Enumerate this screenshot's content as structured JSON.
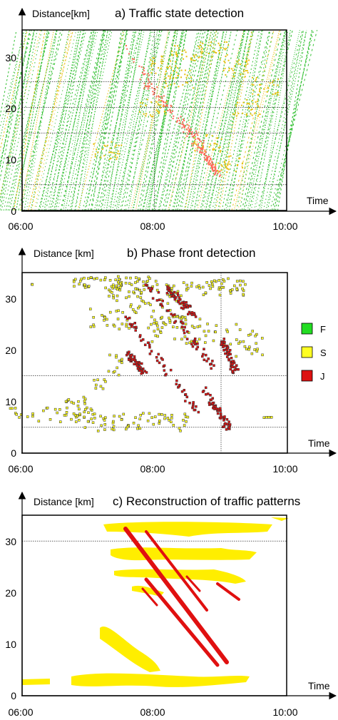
{
  "chart_data": [
    {
      "type": "scatter",
      "title": "a) Traffic state detection",
      "ylabel": "Distance[km]",
      "xlabel": "Time",
      "x_ticks": [
        "06:00",
        "08:00",
        "10:00"
      ],
      "y_ticks": [
        "0",
        "10",
        "20",
        "30"
      ],
      "xlim": [
        "06:00",
        "10:00"
      ],
      "ylim": [
        0,
        35
      ],
      "grid": {
        "horizontal_km": [
          5,
          15,
          20,
          25
        ],
        "vertical_time": [
          "08:00"
        ]
      },
      "colors": {
        "free": "#22bb22",
        "synchronized": "#e8c010",
        "jam": "#ff6a5a"
      },
      "series": []
    },
    {
      "type": "scatter",
      "title": "b) Phase front detection",
      "ylabel": "Distance [km]",
      "xlabel": "Time",
      "x_ticks": [
        "06:00",
        "08:00",
        "10:00"
      ],
      "y_ticks": [
        "0",
        "10",
        "20",
        "30"
      ],
      "xlim": [
        "06:00",
        "10:00"
      ],
      "ylim": [
        0,
        35
      ],
      "grid": {
        "horizontal_km": [
          5,
          15
        ],
        "vertical_time": [
          "09:00"
        ]
      },
      "legend": {
        "placement": "right",
        "items": [
          {
            "label": "F",
            "color": "#22dd22"
          },
          {
            "label": "S",
            "color": "#ffff22"
          },
          {
            "label": "J",
            "color": "#dd1111"
          }
        ]
      },
      "series": []
    },
    {
      "type": "area",
      "title": "c) Reconstruction of traffic patterns",
      "ylabel": "Distance [km]",
      "xlabel": "Time",
      "x_ticks": [
        "06:00",
        "08:00",
        "10:00"
      ],
      "y_ticks": [
        "0",
        "10",
        "20",
        "30"
      ],
      "xlim": [
        "06:00",
        "10:00"
      ],
      "ylim": [
        0,
        35
      ],
      "grid": {
        "horizontal_km": [
          30
        ],
        "vertical_time": []
      },
      "colors": {
        "synchronized": "#ffee00",
        "jam": "#e01010"
      },
      "series": []
    }
  ]
}
